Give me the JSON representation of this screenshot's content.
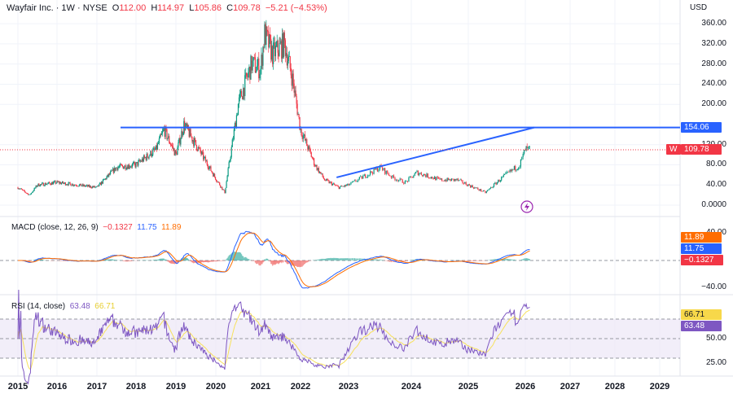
{
  "header": {
    "symbol": "Wayfair Inc. · 1W · NYSE",
    "o_label": "O",
    "o": "112.00",
    "h_label": "H",
    "h": "114.97",
    "l_label": "L",
    "l": "105.86",
    "c_label": "C",
    "c": "109.78",
    "change": "−5.21 (−4.53%)"
  },
  "currency": "USD",
  "colors": {
    "up": "#089981",
    "down": "#f23645",
    "trendline": "#2962ff",
    "macd": "#2962ff",
    "signal": "#ff6d00",
    "rsi": "#7e57c2",
    "rsi_ma": "#f7e15c"
  },
  "price_axis": [
    "360.00",
    "320.00",
    "280.00",
    "240.00",
    "200.00",
    "120.00",
    "80.00",
    "40.00",
    "0.0000"
  ],
  "price_tags": {
    "line": "154.06",
    "last_symbol": "W",
    "last": "109.78"
  },
  "macd": {
    "title": "MACD (close, 12, 26, 9)",
    "hist": "−0.1327",
    "macd": "11.75",
    "signal": "11.89",
    "axis": [
      "40.00",
      "−40.00"
    ]
  },
  "rsi": {
    "title": "RSI (14, close)",
    "rsi": "63.48",
    "ma": "66.71",
    "axis": [
      "50.00",
      "25.00"
    ]
  },
  "years": [
    "2015",
    "2016",
    "2017",
    "2018",
    "2019",
    "2020",
    "2021",
    "2022",
    "2023",
    "2024",
    "2025",
    "2026",
    "2027",
    "2028",
    "2029"
  ],
  "chart_data": {
    "type": "candlestick",
    "title": "Wayfair Inc. · 1W · NYSE",
    "ylabel": "USD",
    "ylim": [
      0,
      360
    ],
    "x": [
      2015.0,
      2015.3,
      2015.5,
      2016.0,
      2016.5,
      2017.0,
      2017.5,
      2018.0,
      2018.5,
      2018.7,
      2019.0,
      2019.2,
      2019.5,
      2019.8,
      2020.2,
      2020.5,
      2020.8,
      2021.0,
      2021.1,
      2021.3,
      2021.6,
      2021.8,
      2022.0,
      2022.3,
      2022.5,
      2022.8,
      2023.0,
      2023.5,
      2023.7,
      2023.9,
      2024.1,
      2024.5,
      2024.8,
      2025.0,
      2025.3,
      2025.6,
      2025.9,
      2026.0,
      2026.1
    ],
    "close": [
      35,
      20,
      40,
      45,
      40,
      35,
      75,
      80,
      110,
      150,
      100,
      160,
      120,
      80,
      25,
      200,
      280,
      270,
      340,
      300,
      320,
      250,
      150,
      80,
      50,
      35,
      40,
      75,
      55,
      45,
      65,
      50,
      50,
      40,
      25,
      55,
      80,
      110,
      109.78
    ],
    "horizontal_line": 154.06,
    "trendline": [
      [
        2022.75,
        55
      ],
      [
        2026.2,
        154.06
      ]
    ]
  }
}
